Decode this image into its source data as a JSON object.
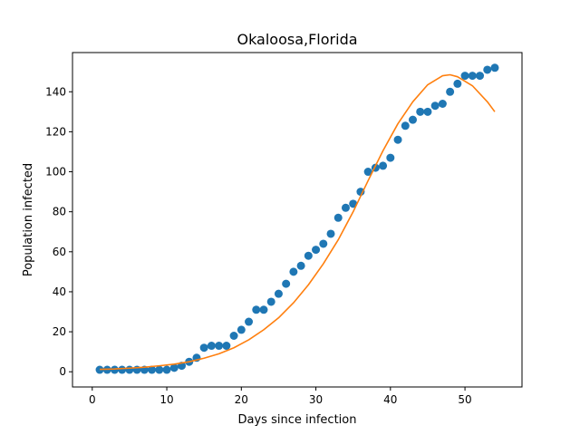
{
  "chart_data": {
    "type": "scatter",
    "title": "Okaloosa,Florida",
    "xlabel": "Days since infection",
    "ylabel": "Population infected",
    "xlim": [
      -2.65,
      57.65
    ],
    "ylim": [
      -7.6,
      159.6
    ],
    "xticks": [
      0,
      10,
      20,
      30,
      40,
      50
    ],
    "yticks": [
      0,
      20,
      40,
      60,
      80,
      100,
      120,
      140
    ],
    "grid": false,
    "colors": {
      "points": "#1f77b4",
      "fit": "#ff7f0e"
    },
    "series": [
      {
        "kind": "scatter",
        "x": [
          1,
          2,
          3,
          4,
          5,
          6,
          7,
          8,
          9,
          10,
          11,
          12,
          13,
          14,
          15,
          16,
          17,
          18,
          19,
          20,
          21,
          22,
          23,
          24,
          25,
          26,
          27,
          28,
          29,
          30,
          31,
          32,
          33,
          34,
          35,
          36,
          37,
          38,
          39,
          40,
          41,
          42,
          43,
          44,
          45,
          46,
          47,
          48,
          49,
          50,
          51,
          52,
          53,
          54
        ],
        "y": [
          1,
          1,
          1,
          1,
          1,
          1,
          1,
          1,
          1,
          1,
          2,
          3,
          5,
          7,
          12,
          13,
          13,
          13,
          18,
          21,
          25,
          31,
          31,
          35,
          39,
          44,
          50,
          53,
          58,
          61,
          64,
          69,
          77,
          82,
          84,
          90,
          100,
          102,
          103,
          107,
          116,
          123,
          126,
          130,
          130,
          133,
          134,
          140,
          144,
          148,
          148,
          148,
          151,
          152
        ]
      },
      {
        "kind": "line",
        "x": [
          1,
          3,
          5,
          7,
          9,
          11,
          13,
          15,
          17,
          19,
          21,
          23,
          25,
          27,
          29,
          31,
          33,
          35,
          37,
          39,
          41,
          43,
          45,
          47,
          48,
          49,
          51,
          53,
          54
        ],
        "y": [
          1.2,
          1.4,
          1.8,
          2.3,
          3.0,
          3.8,
          5.0,
          6.8,
          9.0,
          12.0,
          16.0,
          21.0,
          27.0,
          34.5,
          43.5,
          54.0,
          66.0,
          80.0,
          95.5,
          110.5,
          124.0,
          135.0,
          143.5,
          148.0,
          148.5,
          147.5,
          143.0,
          135.0,
          130.0
        ]
      }
    ]
  }
}
